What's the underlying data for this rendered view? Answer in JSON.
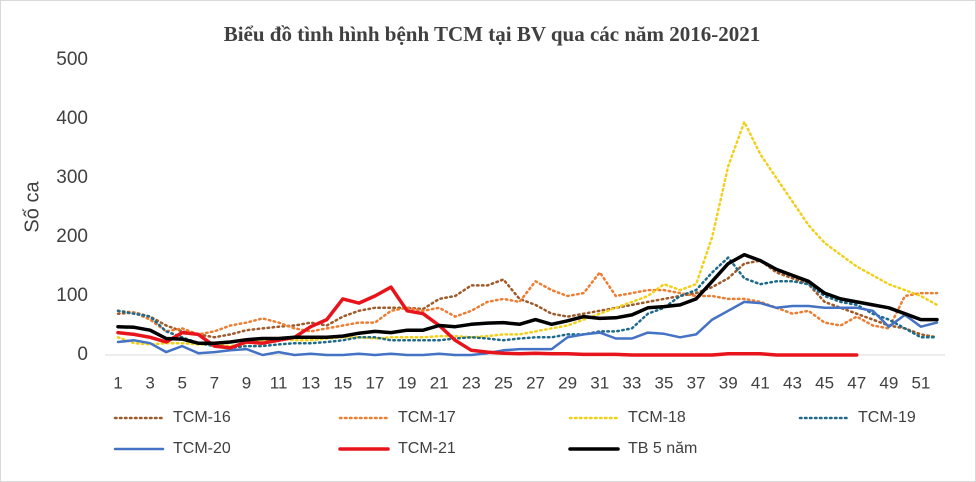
{
  "chart_data": {
    "type": "line",
    "title": "Biểu đồ tình hình bệnh TCM tại BV qua các năm 2016-2021",
    "y_label": "Số ca",
    "categories": [
      "1",
      null,
      "3",
      null,
      "5",
      null,
      "7",
      null,
      "9",
      null,
      "11",
      null,
      "13",
      null,
      "15",
      null,
      "17",
      null,
      "19",
      null,
      "21",
      null,
      "23",
      null,
      "25",
      null,
      "27",
      null,
      "29",
      null,
      "31",
      null,
      "33",
      null,
      "35",
      null,
      "37",
      null,
      "39",
      null,
      "41",
      null,
      "43",
      null,
      "45",
      null,
      "47",
      null,
      "49",
      null,
      "51",
      null
    ],
    "ylim": [
      0,
      500
    ],
    "yticks": [
      0,
      100,
      200,
      300,
      400,
      500
    ],
    "grid": false,
    "legend": "bottom",
    "series": [
      {
        "name": "TCM-16",
        "color": "#9e5a2a",
        "line_style": "dotted",
        "values": [
          70,
          72,
          65,
          50,
          40,
          35,
          30,
          35,
          42,
          45,
          48,
          50,
          55,
          50,
          65,
          75,
          80,
          80,
          80,
          78,
          95,
          100,
          118,
          118,
          128,
          95,
          85,
          70,
          65,
          70,
          75,
          80,
          85,
          90,
          95,
          100,
          105,
          115,
          130,
          155,
          160,
          140,
          130,
          120,
          90,
          80,
          70,
          60,
          50,
          45,
          35,
          30
        ]
      },
      {
        "name": "TCM-17",
        "color": "#ed7d31",
        "line_style": "dotted",
        "values": [
          75,
          72,
          60,
          40,
          45,
          35,
          40,
          50,
          55,
          62,
          55,
          45,
          40,
          45,
          50,
          55,
          55,
          75,
          80,
          75,
          80,
          65,
          75,
          90,
          95,
          90,
          125,
          110,
          100,
          105,
          140,
          100,
          105,
          110,
          110,
          105,
          100,
          100,
          95,
          95,
          90,
          80,
          70,
          75,
          55,
          50,
          65,
          50,
          45,
          100,
          105,
          105
        ]
      },
      {
        "name": "TCM-18",
        "color": "#f2d01a",
        "line_style": "dotted",
        "values": [
          30,
          20,
          18,
          20,
          20,
          18,
          18,
          15,
          20,
          25,
          28,
          25,
          25,
          28,
          30,
          30,
          28,
          30,
          30,
          30,
          32,
          32,
          30,
          32,
          35,
          35,
          40,
          45,
          50,
          60,
          70,
          80,
          90,
          100,
          120,
          110,
          120,
          200,
          320,
          395,
          340,
          300,
          260,
          220,
          190,
          170,
          150,
          135,
          120,
          110,
          100,
          85
        ]
      },
      {
        "name": "TCM-19",
        "color": "#1f6a8a",
        "line_style": "dotted",
        "values": [
          75,
          70,
          65,
          40,
          30,
          20,
          15,
          12,
          15,
          15,
          18,
          20,
          20,
          22,
          25,
          30,
          30,
          25,
          25,
          25,
          25,
          28,
          30,
          28,
          25,
          28,
          30,
          30,
          35,
          35,
          40,
          40,
          45,
          70,
          80,
          100,
          110,
          140,
          165,
          130,
          120,
          125,
          125,
          120,
          100,
          90,
          85,
          70,
          60,
          45,
          30,
          30
        ]
      },
      {
        "name": "TCM-20",
        "color": "#4472c4",
        "line_style": "solid",
        "values": [
          22,
          25,
          20,
          5,
          15,
          3,
          5,
          8,
          10,
          0,
          5,
          0,
          2,
          0,
          0,
          2,
          0,
          2,
          0,
          0,
          2,
          0,
          0,
          3,
          8,
          10,
          10,
          10,
          30,
          35,
          38,
          28,
          28,
          38,
          36,
          30,
          35,
          60,
          75,
          90,
          88,
          80,
          83,
          83,
          80,
          80,
          80,
          75,
          48,
          68,
          48,
          55
        ]
      },
      {
        "name": "TCM-21",
        "color": "#e8141c",
        "line_style": "solid",
        "values": [
          38,
          35,
          30,
          22,
          38,
          35,
          15,
          12,
          22,
          20,
          25,
          30,
          48,
          60,
          95,
          88,
          100,
          115,
          75,
          70,
          50,
          25,
          8,
          5,
          3,
          2,
          3,
          2,
          2,
          1,
          1,
          1,
          0,
          0,
          0,
          0,
          0,
          0,
          2,
          2,
          2,
          0,
          0,
          0,
          0,
          0,
          0,
          null,
          null,
          null,
          null,
          null
        ]
      },
      {
        "name": "TB 5 năm",
        "color": "#000000",
        "line_style": "solid",
        "values": [
          48,
          47,
          42,
          28,
          27,
          20,
          20,
          22,
          26,
          28,
          28,
          30,
          30,
          30,
          32,
          37,
          40,
          38,
          42,
          42,
          50,
          48,
          52,
          54,
          55,
          52,
          60,
          52,
          58,
          65,
          62,
          63,
          68,
          80,
          82,
          85,
          95,
          125,
          155,
          170,
          160,
          145,
          135,
          125,
          105,
          95,
          90,
          85,
          80,
          70,
          60,
          60
        ]
      }
    ]
  }
}
